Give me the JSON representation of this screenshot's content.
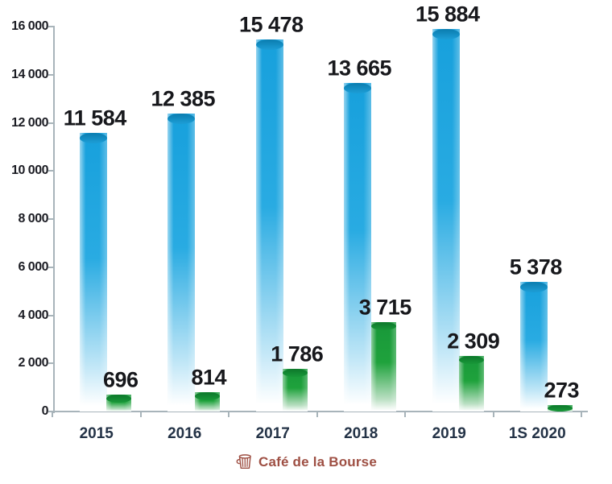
{
  "watermark": {
    "text": "Café de la Bourse"
  },
  "chart_data": {
    "type": "bar",
    "title": "",
    "categories": [
      "2015",
      "2016",
      "2017",
      "2018",
      "2019",
      "1S 2020"
    ],
    "series": [
      {
        "name": "blue-series",
        "color": "#29abe2",
        "values": [
          11584,
          12385,
          15478,
          13665,
          15884,
          5378
        ],
        "labels": [
          "11 584",
          "12 385",
          "15 478",
          "13 665",
          "15 884",
          "5 378"
        ]
      },
      {
        "name": "green-series",
        "color": "#1fa23c",
        "values": [
          696,
          814,
          1786,
          3715,
          2309,
          273
        ],
        "labels": [
          "696",
          "814",
          "1 786",
          "3 715",
          "2 309",
          "273"
        ]
      }
    ],
    "ylim": [
      0,
      16000
    ],
    "y_ticks": [
      0,
      2000,
      4000,
      6000,
      8000,
      10000,
      12000,
      14000,
      16000
    ],
    "y_tick_labels": [
      "0",
      "2 000",
      "4 000",
      "6 000",
      "8 000",
      "10 000",
      "12 000",
      "14 000",
      "16 000"
    ],
    "grid": false,
    "legend": "none",
    "bar_style": "3d-cylinder"
  }
}
